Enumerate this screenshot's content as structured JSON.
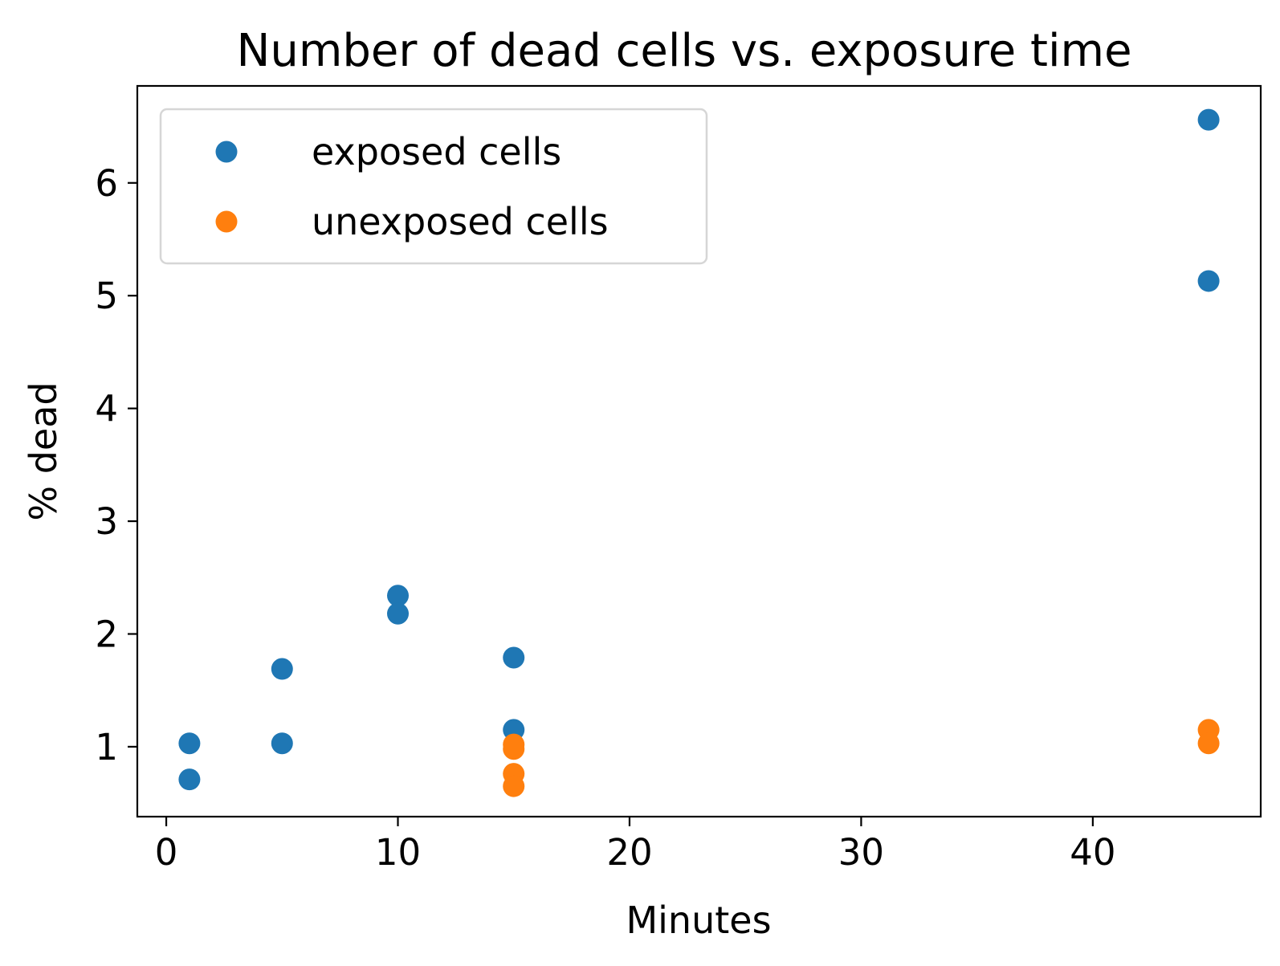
{
  "chart_data": {
    "type": "scatter",
    "title": "Number of dead cells vs. exposure time",
    "xlabel": "Minutes",
    "ylabel": "% dead",
    "xlim": [
      -1.25,
      47.25
    ],
    "ylim": [
      0.38,
      6.86
    ],
    "xticks": [
      0,
      10,
      20,
      30,
      40
    ],
    "yticks": [
      1,
      2,
      3,
      4,
      5,
      6
    ],
    "grid": false,
    "legend_position": "top-left",
    "series": [
      {
        "name": "exposed cells",
        "color": "#1f77b4",
        "points": [
          {
            "x": 1,
            "y": 1.03
          },
          {
            "x": 1,
            "y": 0.71
          },
          {
            "x": 5,
            "y": 1.69
          },
          {
            "x": 5,
            "y": 1.03
          },
          {
            "x": 10,
            "y": 2.34
          },
          {
            "x": 10,
            "y": 2.18
          },
          {
            "x": 15,
            "y": 1.79
          },
          {
            "x": 15,
            "y": 1.15
          },
          {
            "x": 45,
            "y": 6.56
          },
          {
            "x": 45,
            "y": 5.13
          }
        ]
      },
      {
        "name": "unexposed cells",
        "color": "#ff7f0e",
        "points": [
          {
            "x": 15,
            "y": 1.02
          },
          {
            "x": 15,
            "y": 0.98
          },
          {
            "x": 15,
            "y": 0.76
          },
          {
            "x": 15,
            "y": 0.65
          },
          {
            "x": 45,
            "y": 1.15
          },
          {
            "x": 45,
            "y": 1.03
          }
        ]
      }
    ]
  }
}
